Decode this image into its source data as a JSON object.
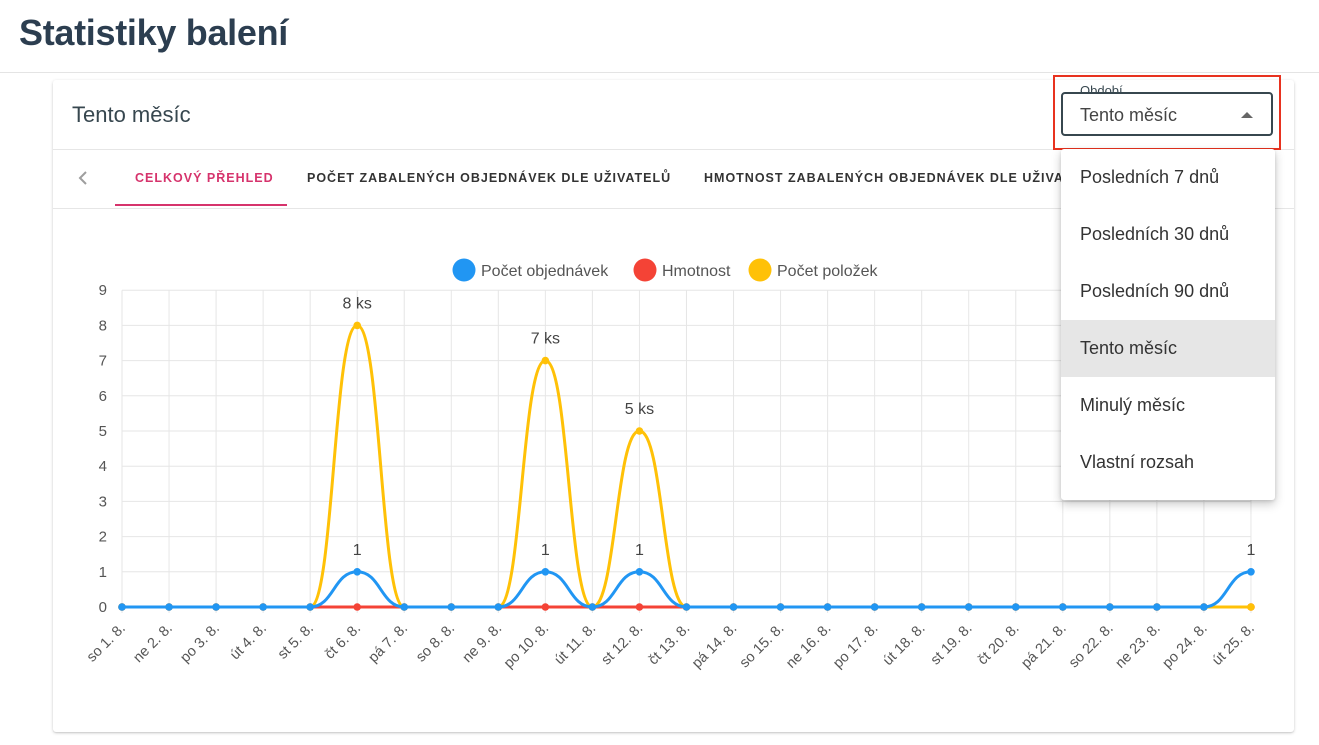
{
  "page": {
    "title": "Statistiky balení"
  },
  "card": {
    "title": "Tento měsíc"
  },
  "tabs": [
    {
      "label": "Celkový přehled",
      "active": true
    },
    {
      "label": "Počet zabalených objednávek dle uživatelů",
      "active": false
    },
    {
      "label": "Hmotnost zabalených objednávek dle uživatelů",
      "active": false
    }
  ],
  "period_select": {
    "label": "Období",
    "value": "Tento měsíc",
    "options": [
      "Posledních 7 dnů",
      "Posledních 30 dnů",
      "Posledních 90 dnů",
      "Tento měsíc",
      "Minulý měsíc",
      "Vlastní rozsah"
    ],
    "selected_index": 3
  },
  "colors": {
    "accent": "#d6336c",
    "orders": "#2196f3",
    "weight": "#f44336",
    "items": "#ffc107",
    "focus_outline": "#e8321f"
  },
  "chart_data": {
    "type": "line",
    "categories": [
      "so 1. 8.",
      "ne 2. 8.",
      "po 3. 8.",
      "út 4. 8.",
      "st 5. 8.",
      "čt 6. 8.",
      "pá 7. 8.",
      "so 8. 8.",
      "ne 9. 8.",
      "po 10. 8.",
      "út 11. 8.",
      "st 12. 8.",
      "čt 13. 8.",
      "pá 14. 8.",
      "so 15. 8.",
      "ne 16. 8.",
      "po 17. 8.",
      "út 18. 8.",
      "st 19. 8.",
      "čt 20. 8.",
      "pá 21. 8.",
      "so 22. 8.",
      "ne 23. 8.",
      "po 24. 8.",
      "út 25. 8."
    ],
    "series": [
      {
        "name": "Počet objednávek",
        "color": "#2196f3",
        "values": [
          0,
          0,
          0,
          0,
          0,
          1,
          0,
          0,
          0,
          1,
          0,
          1,
          0,
          0,
          0,
          0,
          0,
          0,
          0,
          0,
          0,
          0,
          0,
          0,
          1
        ]
      },
      {
        "name": "Hmotnost",
        "color": "#f44336",
        "values": [
          0,
          0,
          0,
          0,
          0,
          0,
          0,
          0,
          0,
          0,
          0,
          0,
          0,
          0,
          0,
          0,
          0,
          0,
          0,
          0,
          0,
          0,
          0,
          0,
          0
        ]
      },
      {
        "name": "Počet položek",
        "color": "#ffc107",
        "values": [
          0,
          0,
          0,
          0,
          0,
          8,
          0,
          0,
          0,
          7,
          0,
          5,
          0,
          0,
          0,
          0,
          0,
          0,
          0,
          0,
          0,
          0,
          0,
          0,
          0
        ]
      }
    ],
    "y_ticks": [
      "0",
      "1",
      "2",
      "3",
      "4",
      "5",
      "6",
      "7",
      "8",
      "9"
    ],
    "ylim": [
      0,
      9
    ],
    "grid": true,
    "legend_position": "top",
    "annotations": [
      {
        "series": 2,
        "index": 5,
        "text": "8 ks"
      },
      {
        "series": 2,
        "index": 9,
        "text": "7 ks"
      },
      {
        "series": 2,
        "index": 11,
        "text": "5 ks"
      },
      {
        "series": 0,
        "index": 5,
        "text": "1"
      },
      {
        "series": 0,
        "index": 9,
        "text": "1"
      },
      {
        "series": 0,
        "index": 11,
        "text": "1"
      },
      {
        "series": 0,
        "index": 24,
        "text": "1"
      }
    ]
  }
}
